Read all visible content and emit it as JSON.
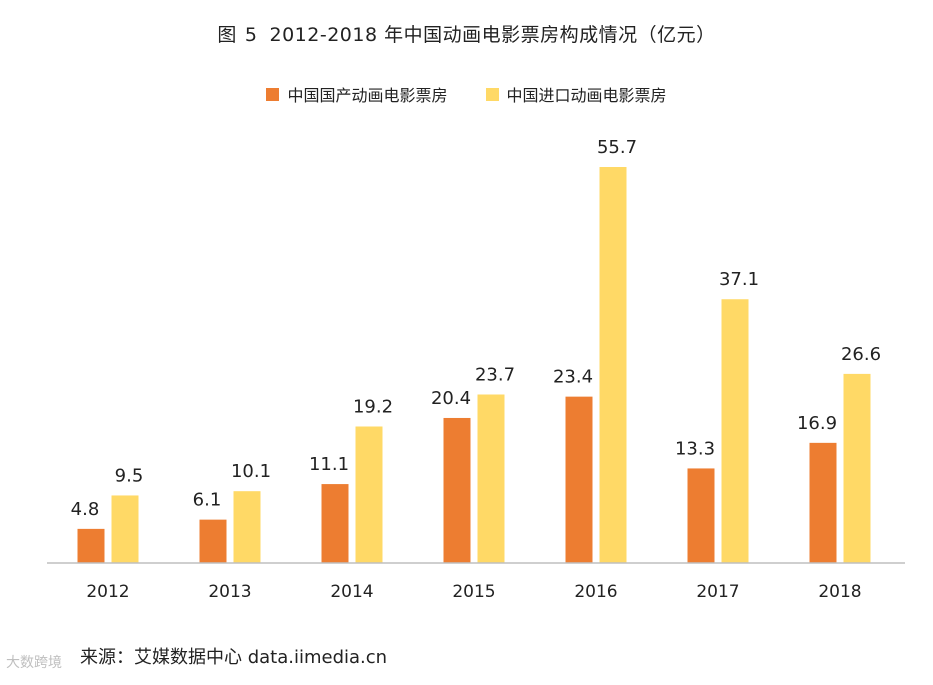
{
  "figure": {
    "label": "图",
    "number": "5",
    "caption": "2012-2018 年中国动画电影票房构成情况（亿元）"
  },
  "chart_data": {
    "type": "bar",
    "title": "图 5  2012-2018 年中国动画电影票房构成情况（亿元）",
    "xlabel": "",
    "ylabel": "",
    "ylim": [
      0,
      60
    ],
    "grid": false,
    "legend_position": "top-center",
    "categories": [
      "2012",
      "2013",
      "2014",
      "2015",
      "2016",
      "2017",
      "2018"
    ],
    "series": [
      {
        "name": "中国国产动画电影票房",
        "color": "#ED7D31",
        "values": [
          4.8,
          6.1,
          11.1,
          20.4,
          23.4,
          13.3,
          16.9
        ]
      },
      {
        "name": "中国进口动画电影票房",
        "color": "#FFD966",
        "values": [
          9.5,
          10.1,
          19.2,
          23.7,
          55.7,
          37.1,
          26.6
        ]
      }
    ],
    "value_labels": [
      [
        "4.8",
        "6.1",
        "11.1",
        "20.4",
        "23.4",
        "13.3",
        "16.9"
      ],
      [
        "9.5",
        "10.1",
        "19.2",
        "23.7",
        "55.7",
        "37.1",
        "26.6"
      ]
    ]
  },
  "source_text": "来源：艾媒数据中心 data.iimedia.cn",
  "watermark_text": "大数跨境"
}
